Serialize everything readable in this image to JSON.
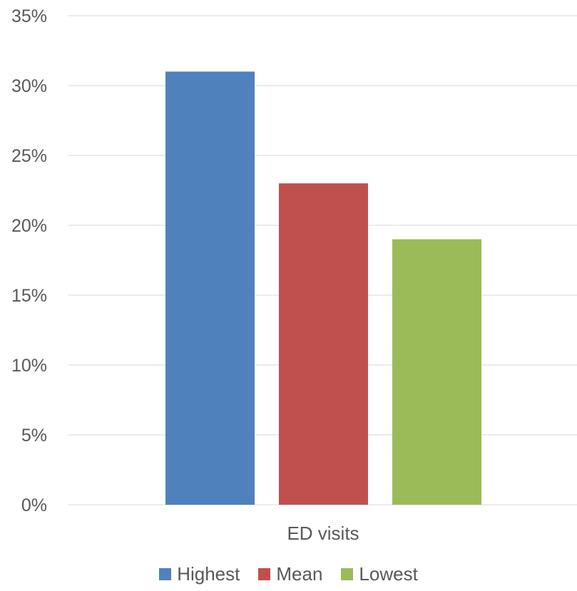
{
  "chart_data": {
    "type": "bar",
    "categories": [
      "ED visits"
    ],
    "series": [
      {
        "name": "Highest",
        "values": [
          31
        ],
        "color": "#4F81BD"
      },
      {
        "name": "Mean",
        "values": [
          23
        ],
        "color": "#C0504D"
      },
      {
        "name": "Lowest",
        "values": [
          19
        ],
        "color": "#9BBB59"
      }
    ],
    "ylim": [
      0,
      35
    ],
    "y_ticks": [
      "0%",
      "5%",
      "10%",
      "15%",
      "20%",
      "25%",
      "30%",
      "35%"
    ],
    "y_tick_values": [
      0,
      5,
      10,
      15,
      20,
      25,
      30,
      35
    ],
    "grid": true,
    "legend_position": "bottom",
    "gridline_color": "#D9D9D9",
    "text_color": "#595959"
  }
}
